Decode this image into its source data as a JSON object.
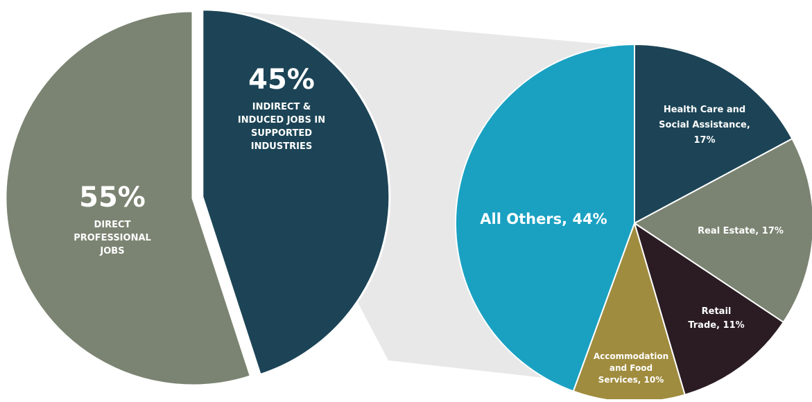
{
  "chart_data": [
    {
      "type": "pie",
      "slices": [
        {
          "label_value": "55%",
          "label_lines": [
            "DIRECT",
            "PROFESSIONAL",
            "JOBS"
          ],
          "value": 55,
          "color": "#7b8472"
        },
        {
          "label_value": "45%",
          "label_lines": [
            "INDIRECT &",
            "INDUCED JOBS IN",
            "SUPPORTED",
            "INDUSTRIES"
          ],
          "value": 45,
          "color": "#1c4456",
          "exploded": true
        }
      ]
    },
    {
      "type": "pie",
      "slices": [
        {
          "label_lines": [
            "Health Care and",
            "Social Assistance,",
            "17%"
          ],
          "value": 17,
          "color": "#1c4456"
        },
        {
          "label_lines": [
            "Real Estate, 17%"
          ],
          "value": 17,
          "color": "#7b8472"
        },
        {
          "label_lines": [
            "Retail",
            "Trade, 11%"
          ],
          "value": 11,
          "color": "#2a1c22"
        },
        {
          "label_lines": [
            "Accommodation",
            "and Food",
            "Services, 10%"
          ],
          "value": 10,
          "color": "#a08c3e"
        },
        {
          "label_lines": [
            "All Others, 44%"
          ],
          "value": 44,
          "color": "#1aa1c2"
        }
      ]
    }
  ],
  "connector_color": "#e6e6e6"
}
